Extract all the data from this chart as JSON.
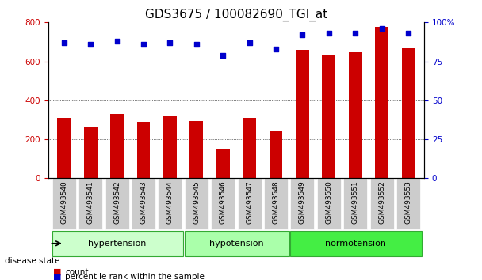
{
  "title": "GDS3675 / 100082690_TGI_at",
  "samples": [
    "GSM493540",
    "GSM493541",
    "GSM493542",
    "GSM493543",
    "GSM493544",
    "GSM493545",
    "GSM493546",
    "GSM493547",
    "GSM493548",
    "GSM493549",
    "GSM493550",
    "GSM493551",
    "GSM493552",
    "GSM493553"
  ],
  "counts": [
    310,
    263,
    330,
    290,
    320,
    293,
    153,
    310,
    242,
    660,
    635,
    645,
    775,
    668
  ],
  "percentiles": [
    87,
    86,
    88,
    86,
    87,
    86,
    79,
    87,
    83,
    92,
    93,
    93,
    96,
    93
  ],
  "groups": [
    {
      "label": "hypertension",
      "start": 0,
      "end": 5,
      "color": "#ccffcc"
    },
    {
      "label": "hypotension",
      "start": 5,
      "end": 9,
      "color": "#aaffaa"
    },
    {
      "label": "normotension",
      "start": 9,
      "end": 14,
      "color": "#44ee44"
    }
  ],
  "ylim_left": [
    0,
    800
  ],
  "ylim_right": [
    0,
    100
  ],
  "yticks_left": [
    0,
    200,
    400,
    600,
    800
  ],
  "yticks_right": [
    0,
    25,
    50,
    75,
    100
  ],
  "yticklabels_right": [
    "0",
    "25",
    "50",
    "75",
    "100%"
  ],
  "bar_color": "#cc0000",
  "dot_color": "#0000cc",
  "bg_color": "#ffffff",
  "tick_label_area_color": "#cccccc",
  "legend_count_color": "#cc0000",
  "legend_pct_color": "#0000cc",
  "grid_color": "#000000",
  "title_fontsize": 11,
  "tick_fontsize": 7.5,
  "label_fontsize": 8.5,
  "disease_state_label": "disease state"
}
